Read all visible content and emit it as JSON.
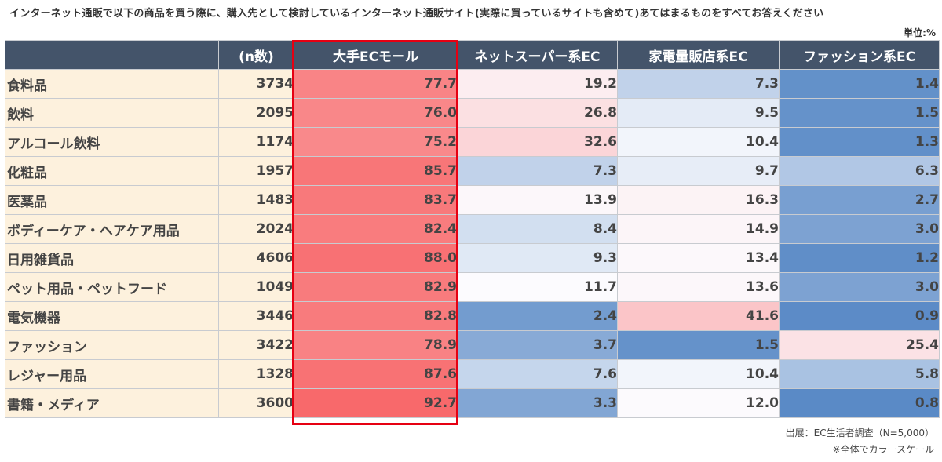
{
  "title": "インターネット通販で以下の商品を買う際に、購入先として検討しているインターネット通販サイト(実際に買っているサイトも含めて)あてはまるものをすべてお答えください",
  "unit": "単位:%",
  "notes": {
    "source": "出展：EC生活者調査（N=5,000）",
    "scale": "※全体でカラースケール"
  },
  "colors": {
    "header_bg": "#44546a",
    "label_bg": "#fdf1dd",
    "high": "#f8696b",
    "mid": "#fcfcff",
    "low": "#5a8ac6",
    "highlight_border": "#e60012"
  },
  "chart_data": {
    "type": "table",
    "columns": [
      "",
      "(n数)",
      "大手ECモール",
      "ネットスーパー系EC",
      "家電量販店系EC",
      "ファッション系EC"
    ],
    "rows": [
      {
        "label": "食料品",
        "n": 3734,
        "values": [
          77.7,
          19.2,
          7.3,
          1.4
        ]
      },
      {
        "label": "飲料",
        "n": 2095,
        "values": [
          76.0,
          26.8,
          9.5,
          1.5
        ]
      },
      {
        "label": "アルコール飲料",
        "n": 1174,
        "values": [
          75.2,
          32.6,
          10.4,
          1.3
        ]
      },
      {
        "label": "化粧品",
        "n": 1957,
        "values": [
          85.7,
          7.3,
          9.7,
          6.3
        ]
      },
      {
        "label": "医薬品",
        "n": 1483,
        "values": [
          83.7,
          13.9,
          16.3,
          2.7
        ]
      },
      {
        "label": "ボディーケア・ヘアケア用品",
        "n": 2024,
        "values": [
          82.4,
          8.4,
          14.9,
          3.0
        ]
      },
      {
        "label": "日用雑貨品",
        "n": 4606,
        "values": [
          88.0,
          9.3,
          13.4,
          1.2
        ]
      },
      {
        "label": "ペット用品・ペットフード",
        "n": 1049,
        "values": [
          82.9,
          11.7,
          13.6,
          3.0
        ]
      },
      {
        "label": "電気機器",
        "n": 3446,
        "values": [
          82.8,
          2.4,
          41.6,
          0.9
        ]
      },
      {
        "label": "ファッション",
        "n": 3422,
        "values": [
          78.9,
          3.7,
          1.5,
          25.4
        ]
      },
      {
        "label": "レジャー用品",
        "n": 1328,
        "values": [
          87.6,
          7.6,
          10.4,
          5.8
        ]
      },
      {
        "label": "書籍・メディア",
        "n": 3600,
        "values": [
          92.7,
          3.3,
          12.0,
          0.8
        ]
      }
    ],
    "highlighted_column": "大手ECモール"
  }
}
